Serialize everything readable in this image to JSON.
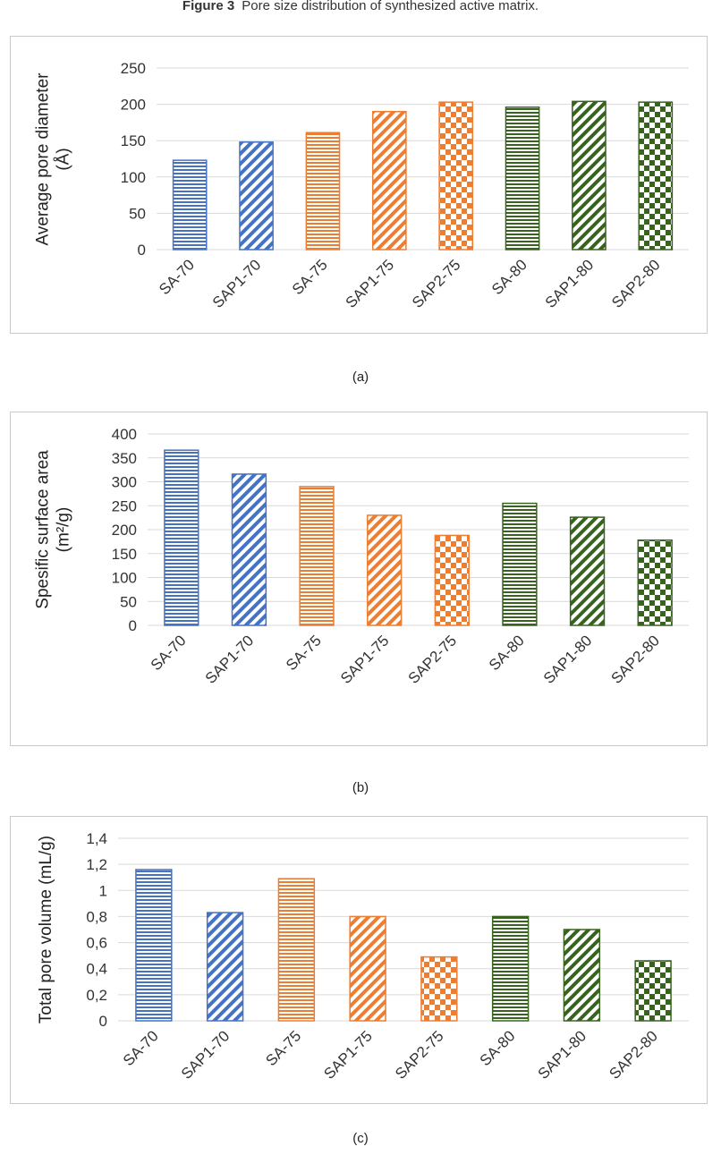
{
  "figure": {
    "label": "Figure 3",
    "title": "Pore size distribution of synthesized active matrix."
  },
  "colors": {
    "blue": "#4472c4",
    "orange": "#ed7d31",
    "green": "#38631f",
    "grid": "#d9d9d9"
  },
  "chart_data": [
    {
      "type": "bar",
      "caption": "(a)",
      "ylabel_lines": [
        "Average pore diameter",
        "(Å)"
      ],
      "ylim": [
        0,
        250
      ],
      "yticks": [
        0,
        50,
        100,
        150,
        200,
        250
      ],
      "ytick_labels": [
        "0",
        "50",
        "100",
        "150",
        "200",
        "250"
      ],
      "grid": true,
      "categories": [
        "SA-70",
        "SAP1-70",
        "SA-75",
        "SAP1-75",
        "SAP2-75",
        "SA-80",
        "SAP1-80",
        "SAP2-80"
      ],
      "values": [
        123,
        148,
        161,
        190,
        203,
        196,
        204,
        203
      ],
      "colors": [
        "blue",
        "blue",
        "orange",
        "orange",
        "orange",
        "green",
        "green",
        "green"
      ],
      "patterns": [
        "horizontal",
        "diagonal",
        "horizontal",
        "diagonal",
        "checker",
        "horizontal",
        "diagonal",
        "checker"
      ]
    },
    {
      "type": "bar",
      "caption": "(b)",
      "ylabel_lines": [
        "Spesific surface area",
        "(m²/g)"
      ],
      "ylim": [
        0,
        400
      ],
      "yticks": [
        0,
        50,
        100,
        150,
        200,
        250,
        300,
        350,
        400
      ],
      "ytick_labels": [
        "0",
        "50",
        "100",
        "150",
        "200",
        "250",
        "300",
        "350",
        "400"
      ],
      "grid": true,
      "categories": [
        "SA-70",
        "SAP1-70",
        "SA-75",
        "SAP1-75",
        "SAP2-75",
        "SA-80",
        "SAP1-80",
        "SAP2-80"
      ],
      "values": [
        366,
        316,
        290,
        230,
        188,
        255,
        226,
        178
      ],
      "colors": [
        "blue",
        "blue",
        "orange",
        "orange",
        "orange",
        "green",
        "green",
        "green"
      ],
      "patterns": [
        "horizontal",
        "diagonal",
        "horizontal",
        "diagonal",
        "checker",
        "horizontal",
        "diagonal",
        "checker"
      ]
    },
    {
      "type": "bar",
      "caption": "(c)",
      "ylabel_lines": [
        "Total pore volume (mL/g)"
      ],
      "ylim": [
        0,
        1.4
      ],
      "yticks": [
        0,
        0.2,
        0.4,
        0.6,
        0.8,
        1.0,
        1.2,
        1.4
      ],
      "ytick_labels": [
        "0",
        "0,2",
        "0,4",
        "0,6",
        "0,8",
        "1",
        "1,2",
        "1,4"
      ],
      "grid": true,
      "categories": [
        "SA-70",
        "SAP1-70",
        "SA-75",
        "SAP1-75",
        "SAP2-75",
        "SA-80",
        "SAP1-80",
        "SAP2-80"
      ],
      "values": [
        1.16,
        0.83,
        1.09,
        0.8,
        0.49,
        0.8,
        0.7,
        0.46
      ],
      "colors": [
        "blue",
        "blue",
        "orange",
        "orange",
        "orange",
        "green",
        "green",
        "green"
      ],
      "patterns": [
        "horizontal",
        "diagonal",
        "horizontal",
        "diagonal",
        "checker",
        "horizontal",
        "diagonal",
        "checker"
      ]
    }
  ]
}
